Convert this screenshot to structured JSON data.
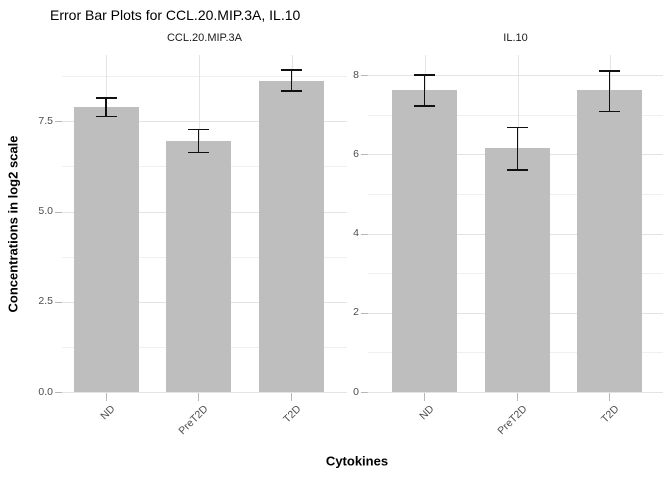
{
  "chart_data": {
    "type": "bar",
    "title": "Error Bar Plots for CCL.20.MIP.3A, IL.10",
    "xlabel": "Cytokines",
    "ylabel": "Concentrations in log2 scale",
    "categories": [
      "ND",
      "PreT2D",
      "T2D"
    ],
    "legend": false,
    "grid": true,
    "colors": {
      "bar_fill": "#bebebe",
      "error_bar": "#111111",
      "grid_major": "#e3e3e3",
      "grid_minor": "#f0f0f0",
      "tick_label": "#4d4d4d",
      "axis_tick": "#b8b8b8",
      "title_text": "#000000"
    },
    "facets": [
      {
        "label": "CCL.20.MIP.3A",
        "ylim": [
          0,
          9.34
        ],
        "y_major_ticks": [
          {
            "value": 0,
            "label": "0.0"
          },
          {
            "value": 2.5,
            "label": "2.5"
          },
          {
            "value": 5,
            "label": "5.0"
          },
          {
            "value": 7.5,
            "label": "7.5"
          }
        ],
        "y_minor_ticks": [
          1.25,
          3.75,
          6.25,
          8.75
        ],
        "bars": [
          {
            "category": "ND",
            "mean": 7.9,
            "err_low": 7.64,
            "err_high": 8.15
          },
          {
            "category": "PreT2D",
            "mean": 6.95,
            "err_low": 6.64,
            "err_high": 7.28
          },
          {
            "category": "T2D",
            "mean": 8.62,
            "err_low": 8.34,
            "err_high": 8.92
          }
        ]
      },
      {
        "label": "IL.10",
        "ylim": [
          0,
          8.51
        ],
        "y_major_ticks": [
          {
            "value": 0,
            "label": "0"
          },
          {
            "value": 2,
            "label": "2"
          },
          {
            "value": 4,
            "label": "4"
          },
          {
            "value": 6,
            "label": "6"
          },
          {
            "value": 8,
            "label": "8"
          }
        ],
        "y_minor_ticks": [
          1,
          3,
          5,
          7
        ],
        "bars": [
          {
            "category": "ND",
            "mean": 7.62,
            "err_low": 7.22,
            "err_high": 8.0
          },
          {
            "category": "PreT2D",
            "mean": 6.15,
            "err_low": 5.61,
            "err_high": 6.68
          },
          {
            "category": "T2D",
            "mean": 7.62,
            "err_low": 7.08,
            "err_high": 8.1
          }
        ]
      }
    ]
  }
}
